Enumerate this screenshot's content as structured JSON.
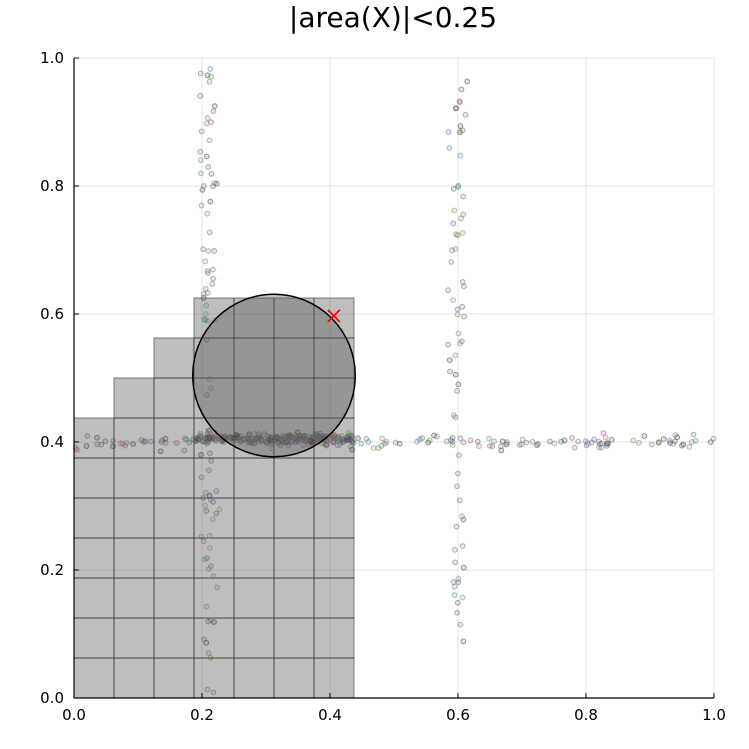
{
  "chart_data": {
    "type": "scatter",
    "title": "|area(X)|<0.25",
    "xlabel": "",
    "ylabel": "",
    "xlim": [
      0.0,
      1.0
    ],
    "ylim": [
      0.0,
      1.0
    ],
    "x_ticks": [
      0.0,
      0.2,
      0.4,
      0.6,
      0.8,
      1.0
    ],
    "y_ticks": [
      0.0,
      0.2,
      0.4,
      0.6,
      0.8,
      1.0
    ],
    "x_tick_labels": [
      "0.0",
      "0.2",
      "0.4",
      "0.6",
      "0.8",
      "1.0"
    ],
    "y_tick_labels": [
      "0.0",
      "0.2",
      "0.4",
      "0.6",
      "0.8",
      "1.0"
    ],
    "grid": true,
    "legend": "none",
    "colors": {
      "grid": "#e6e6e6",
      "box_fill": "#555555",
      "circle_fill": "#555555",
      "marker": "#ff0000"
    },
    "boxes": [
      {
        "x0": 0.0,
        "x1": 0.4375,
        "y0": 0.0,
        "y1": 0.4375
      },
      {
        "x0": 0.0625,
        "x1": 0.4375,
        "y0": 0.4375,
        "y1": 0.5
      },
      {
        "x0": 0.125,
        "x1": 0.4375,
        "y0": 0.5,
        "y1": 0.5625
      },
      {
        "x0": 0.1875,
        "x1": 0.4375,
        "y0": 0.5625,
        "y1": 0.625
      }
    ],
    "circle": {
      "cx": 0.3125,
      "cy": 0.5039,
      "r": 0.127
    },
    "marker": {
      "x": 0.406,
      "y": 0.597,
      "symbol": "x"
    },
    "scatter_clusters": [
      {
        "name": "vertical-0.21",
        "axis": "vertical",
        "center": 0.21,
        "spread": 0.012,
        "range": [
          0.0,
          1.0
        ],
        "count": 90
      },
      {
        "name": "vertical-0.60",
        "axis": "vertical",
        "center": 0.6,
        "spread": 0.012,
        "range": [
          0.08,
          0.99
        ],
        "count": 70
      },
      {
        "name": "horizontal-0.40",
        "axis": "horizontal",
        "center": 0.4,
        "spread": 0.01,
        "range": [
          0.0,
          1.0
        ],
        "count": 150
      },
      {
        "name": "dense-band",
        "axis": "horizontal",
        "center": 0.405,
        "spread": 0.007,
        "range": [
          0.19,
          0.44
        ],
        "count": 220
      }
    ],
    "point_colors": [
      "#4f5b5f",
      "#7a4f8f",
      "#4f7a8f",
      "#8f7a4f",
      "#4f8f5b",
      "#8f4f6a",
      "#333333",
      "#6b6b45"
    ]
  }
}
